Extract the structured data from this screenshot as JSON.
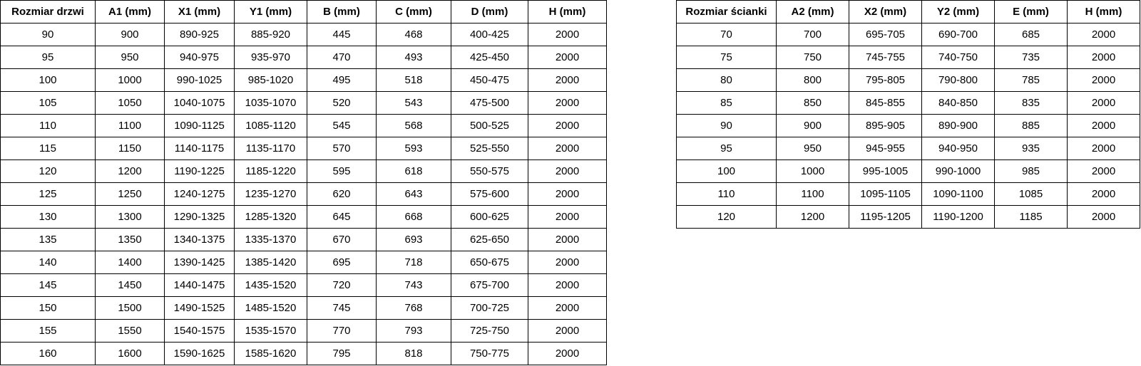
{
  "tables": [
    {
      "id": "door-sizes",
      "headers": [
        "Rozmiar drzwi",
        "A1 (mm)",
        "X1 (mm)",
        "Y1 (mm)",
        "B (mm)",
        "C (mm)",
        "D (mm)",
        "H (mm)"
      ],
      "rows": [
        [
          "90",
          "900",
          "890-925",
          "885-920",
          "445",
          "468",
          "400-425",
          "2000"
        ],
        [
          "95",
          "950",
          "940-975",
          "935-970",
          "470",
          "493",
          "425-450",
          "2000"
        ],
        [
          "100",
          "1000",
          "990-1025",
          "985-1020",
          "495",
          "518",
          "450-475",
          "2000"
        ],
        [
          "105",
          "1050",
          "1040-1075",
          "1035-1070",
          "520",
          "543",
          "475-500",
          "2000"
        ],
        [
          "110",
          "1100",
          "1090-1125",
          "1085-1120",
          "545",
          "568",
          "500-525",
          "2000"
        ],
        [
          "115",
          "1150",
          "1140-1175",
          "1135-1170",
          "570",
          "593",
          "525-550",
          "2000"
        ],
        [
          "120",
          "1200",
          "1190-1225",
          "1185-1220",
          "595",
          "618",
          "550-575",
          "2000"
        ],
        [
          "125",
          "1250",
          "1240-1275",
          "1235-1270",
          "620",
          "643",
          "575-600",
          "2000"
        ],
        [
          "130",
          "1300",
          "1290-1325",
          "1285-1320",
          "645",
          "668",
          "600-625",
          "2000"
        ],
        [
          "135",
          "1350",
          "1340-1375",
          "1335-1370",
          "670",
          "693",
          "625-650",
          "2000"
        ],
        [
          "140",
          "1400",
          "1390-1425",
          "1385-1420",
          "695",
          "718",
          "650-675",
          "2000"
        ],
        [
          "145",
          "1450",
          "1440-1475",
          "1435-1520",
          "720",
          "743",
          "675-700",
          "2000"
        ],
        [
          "150",
          "1500",
          "1490-1525",
          "1485-1520",
          "745",
          "768",
          "700-725",
          "2000"
        ],
        [
          "155",
          "1550",
          "1540-1575",
          "1535-1570",
          "770",
          "793",
          "725-750",
          "2000"
        ],
        [
          "160",
          "1600",
          "1590-1625",
          "1585-1620",
          "795",
          "818",
          "750-775",
          "2000"
        ]
      ]
    },
    {
      "id": "wall-sizes",
      "headers": [
        "Rozmiar ścianki",
        "A2 (mm)",
        "X2 (mm)",
        "Y2 (mm)",
        "E (mm)",
        "H (mm)"
      ],
      "rows": [
        [
          "70",
          "700",
          "695-705",
          "690-700",
          "685",
          "2000"
        ],
        [
          "75",
          "750",
          "745-755",
          "740-750",
          "735",
          "2000"
        ],
        [
          "80",
          "800",
          "795-805",
          "790-800",
          "785",
          "2000"
        ],
        [
          "85",
          "850",
          "845-855",
          "840-850",
          "835",
          "2000"
        ],
        [
          "90",
          "900",
          "895-905",
          "890-900",
          "885",
          "2000"
        ],
        [
          "95",
          "950",
          "945-955",
          "940-950",
          "935",
          "2000"
        ],
        [
          "100",
          "1000",
          "995-1005",
          "990-1000",
          "985",
          "2000"
        ],
        [
          "110",
          "1100",
          "1095-1105",
          "1090-1100",
          "1085",
          "2000"
        ],
        [
          "120",
          "1200",
          "1195-1205",
          "1190-1200",
          "1185",
          "2000"
        ]
      ]
    }
  ],
  "colors": {
    "border": "#000000",
    "text": "#000000",
    "background": "#ffffff"
  }
}
